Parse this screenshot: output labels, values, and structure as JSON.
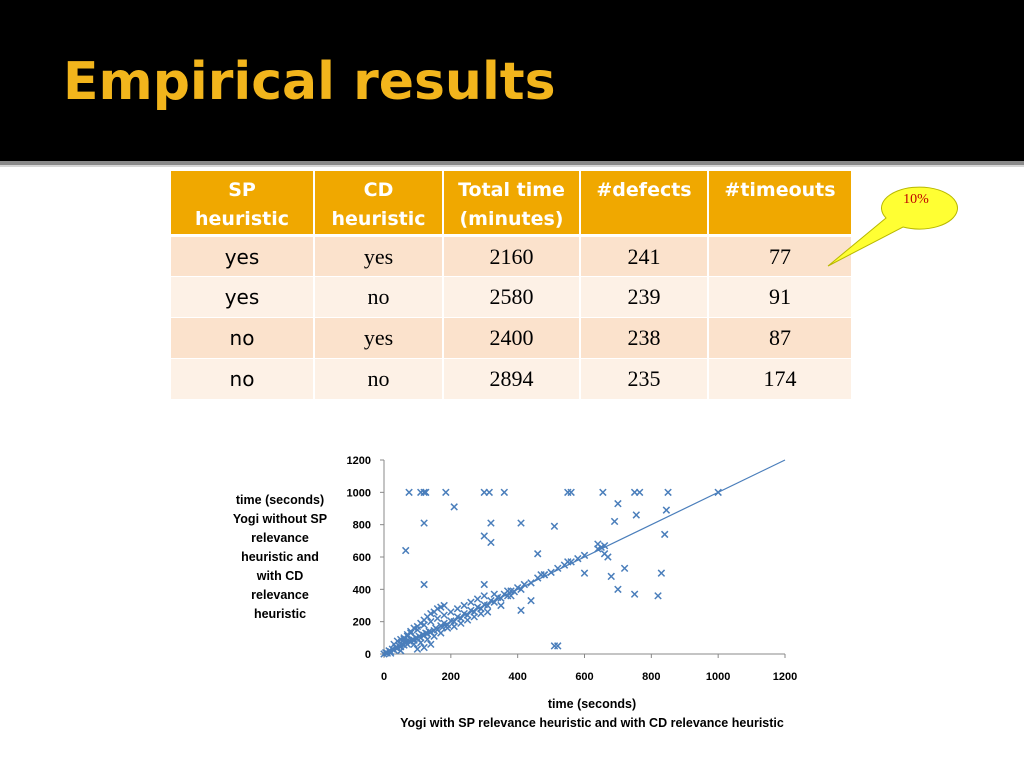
{
  "slide": {
    "title": "Empirical results"
  },
  "table": {
    "headers": [
      "SP\nheuristic",
      "CD\nheuristic",
      "Total time\n(minutes)",
      "#defects",
      "#timeouts"
    ],
    "rows": [
      [
        "yes",
        "yes",
        "2160",
        "241",
        "77"
      ],
      [
        "yes",
        "no",
        "2580",
        "239",
        "91"
      ],
      [
        "no",
        "yes",
        "2400",
        "238",
        "87"
      ],
      [
        "no",
        "no",
        "2894",
        "235",
        "174"
      ]
    ]
  },
  "callout": {
    "text": "10%",
    "fill_color": "#ffff33",
    "text_color": "#c00000"
  },
  "colors": {
    "title": "#f2b51c",
    "header_bg": "#f0a800",
    "row_odd": "#fbe2cc",
    "row_even": "#fdf1e6",
    "series": "#4a7ebb"
  },
  "chart_data": {
    "type": "scatter",
    "xlabel": "time (seconds)\nYogi with SP relevance heuristic and with CD relevance heuristic",
    "ylabel": "time (seconds)\nYogi without SP\nrelevance\nheuristic and\nwith  CD\nrelevance\nheuristic",
    "xlim": [
      0,
      1200
    ],
    "ylim": [
      0,
      1200
    ],
    "x_ticks": [
      "0",
      "200",
      "400",
      "600",
      "800",
      "1000",
      "1200"
    ],
    "y_ticks": [
      "0",
      "200",
      "400",
      "600",
      "800",
      "1000",
      "1200"
    ],
    "grid": false,
    "trendline": {
      "x": [
        0,
        1200
      ],
      "y": [
        0,
        1200
      ]
    },
    "points": [
      [
        0,
        0
      ],
      [
        5,
        8
      ],
      [
        10,
        5
      ],
      [
        15,
        20
      ],
      [
        20,
        15
      ],
      [
        25,
        30
      ],
      [
        30,
        25
      ],
      [
        35,
        40
      ],
      [
        40,
        35
      ],
      [
        45,
        50
      ],
      [
        50,
        45
      ],
      [
        55,
        60
      ],
      [
        60,
        55
      ],
      [
        65,
        70
      ],
      [
        70,
        60
      ],
      [
        75,
        80
      ],
      [
        80,
        75
      ],
      [
        85,
        90
      ],
      [
        90,
        85
      ],
      [
        95,
        100
      ],
      [
        100,
        95
      ],
      [
        105,
        110
      ],
      [
        110,
        100
      ],
      [
        115,
        120
      ],
      [
        120,
        115
      ],
      [
        125,
        130
      ],
      [
        130,
        125
      ],
      [
        135,
        140
      ],
      [
        140,
        135
      ],
      [
        150,
        145
      ],
      [
        155,
        160
      ],
      [
        160,
        150
      ],
      [
        170,
        175
      ],
      [
        175,
        165
      ],
      [
        180,
        190
      ],
      [
        190,
        180
      ],
      [
        200,
        205
      ],
      [
        210,
        200
      ],
      [
        220,
        230
      ],
      [
        230,
        220
      ],
      [
        240,
        250
      ],
      [
        250,
        240
      ],
      [
        260,
        270
      ],
      [
        270,
        260
      ],
      [
        280,
        290
      ],
      [
        290,
        280
      ],
      [
        300,
        305
      ],
      [
        310,
        300
      ],
      [
        320,
        330
      ],
      [
        330,
        320
      ],
      [
        340,
        350
      ],
      [
        350,
        345
      ],
      [
        360,
        370
      ],
      [
        370,
        360
      ],
      [
        380,
        390
      ],
      [
        390,
        385
      ],
      [
        400,
        410
      ],
      [
        410,
        400
      ],
      [
        420,
        430
      ],
      [
        440,
        440
      ],
      [
        460,
        470
      ],
      [
        480,
        490
      ],
      [
        500,
        505
      ],
      [
        520,
        530
      ],
      [
        540,
        550
      ],
      [
        560,
        570
      ],
      [
        580,
        590
      ],
      [
        600,
        610
      ],
      [
        640,
        650
      ],
      [
        660,
        670
      ],
      [
        50,
        20
      ],
      [
        60,
        90
      ],
      [
        70,
        110
      ],
      [
        80,
        130
      ],
      [
        90,
        60
      ],
      [
        100,
        150
      ],
      [
        110,
        70
      ],
      [
        120,
        180
      ],
      [
        130,
        90
      ],
      [
        140,
        200
      ],
      [
        150,
        110
      ],
      [
        160,
        220
      ],
      [
        170,
        130
      ],
      [
        180,
        240
      ],
      [
        190,
        160
      ],
      [
        200,
        260
      ],
      [
        210,
        170
      ],
      [
        220,
        280
      ],
      [
        230,
        190
      ],
      [
        240,
        300
      ],
      [
        250,
        210
      ],
      [
        260,
        320
      ],
      [
        270,
        230
      ],
      [
        280,
        340
      ],
      [
        290,
        250
      ],
      [
        300,
        360
      ],
      [
        310,
        260
      ],
      [
        330,
        370
      ],
      [
        350,
        300
      ],
      [
        370,
        390
      ],
      [
        30,
        60
      ],
      [
        40,
        80
      ],
      [
        50,
        90
      ],
      [
        60,
        100
      ],
      [
        70,
        120
      ],
      [
        80,
        140
      ],
      [
        90,
        160
      ],
      [
        100,
        170
      ],
      [
        110,
        190
      ],
      [
        120,
        210
      ],
      [
        130,
        230
      ],
      [
        140,
        250
      ],
      [
        150,
        260
      ],
      [
        160,
        280
      ],
      [
        170,
        290
      ],
      [
        180,
        300
      ],
      [
        100,
        30
      ],
      [
        120,
        40
      ],
      [
        140,
        60
      ],
      [
        20,
        5
      ],
      [
        75,
        1000
      ],
      [
        110,
        1000
      ],
      [
        120,
        1000
      ],
      [
        125,
        1000
      ],
      [
        185,
        1000
      ],
      [
        300,
        1000
      ],
      [
        315,
        1000
      ],
      [
        360,
        1000
      ],
      [
        550,
        1000
      ],
      [
        560,
        1000
      ],
      [
        655,
        1000
      ],
      [
        750,
        1000
      ],
      [
        765,
        1000
      ],
      [
        850,
        1000
      ],
      [
        1000,
        1000
      ],
      [
        210,
        910
      ],
      [
        300,
        730
      ],
      [
        120,
        810
      ],
      [
        320,
        810
      ],
      [
        410,
        810
      ],
      [
        510,
        790
      ],
      [
        690,
        820
      ],
      [
        700,
        930
      ],
      [
        755,
        860
      ],
      [
        845,
        890
      ],
      [
        65,
        640
      ],
      [
        320,
        690
      ],
      [
        460,
        620
      ],
      [
        470,
        490
      ],
      [
        480,
        490
      ],
      [
        550,
        570
      ],
      [
        600,
        500
      ],
      [
        640,
        680
      ],
      [
        650,
        660
      ],
      [
        660,
        620
      ],
      [
        670,
        600
      ],
      [
        680,
        480
      ],
      [
        700,
        400
      ],
      [
        720,
        530
      ],
      [
        750,
        370
      ],
      [
        820,
        360
      ],
      [
        830,
        500
      ],
      [
        840,
        740
      ],
      [
        120,
        430
      ],
      [
        300,
        430
      ],
      [
        410,
        270
      ],
      [
        510,
        50
      ],
      [
        520,
        50
      ],
      [
        380,
        360
      ],
      [
        440,
        330
      ]
    ]
  }
}
